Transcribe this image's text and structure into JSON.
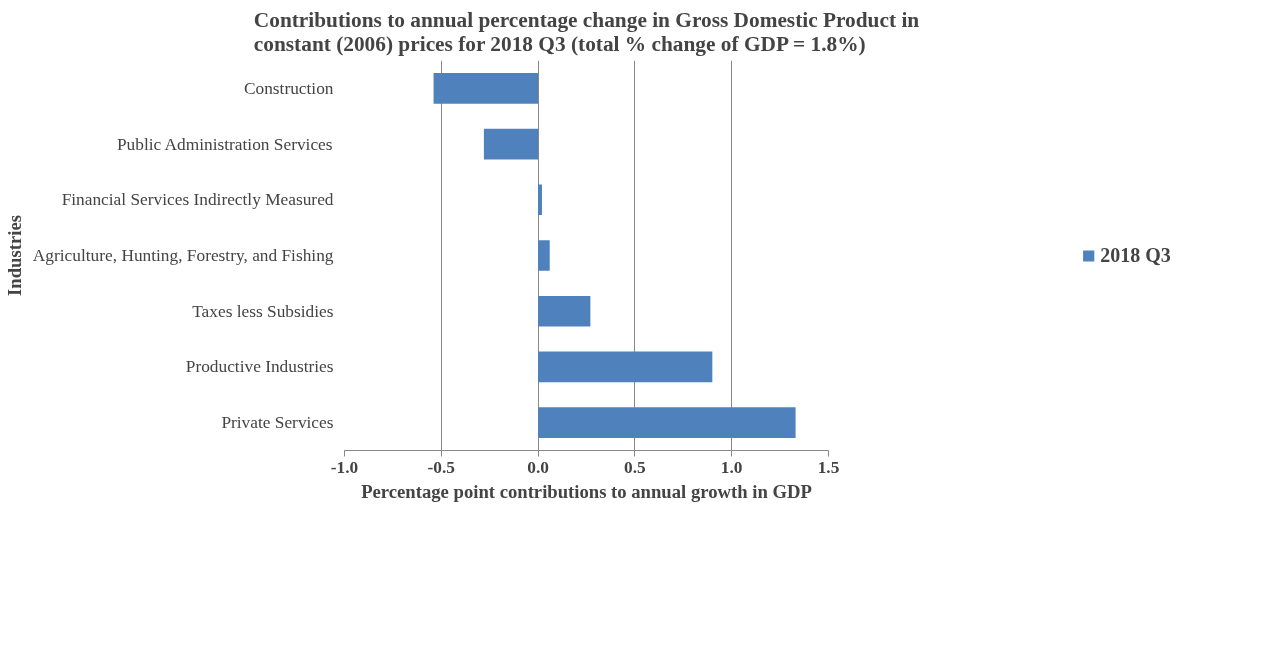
{
  "chart_data": {
    "type": "bar",
    "orientation": "horizontal",
    "title": "Contributions to annual percentage change in Gross Domestic Product in constant (2006) prices for 2018 Q3 (total % change of GDP = 1.8%)",
    "xlabel": "Percentage point contributions to annual growth in GDP",
    "ylabel": "Industries",
    "categories": [
      "Construction",
      "Public Administration Services",
      "Financial Services Indirectly Measured",
      "Agriculture, Hunting, Forestry, and Fishing",
      "Taxes less Subsidies",
      "Productive Industries",
      "Private Services"
    ],
    "series": [
      {
        "name": "2018 Q3",
        "color": "#4f81bd",
        "values": [
          -0.54,
          -0.28,
          0.02,
          0.06,
          0.27,
          0.9,
          1.33
        ]
      }
    ],
    "xlim": [
      -1.0,
      1.5
    ],
    "xticks": [
      {
        "value": -1.0,
        "label": "-1.0"
      },
      {
        "value": -0.5,
        "label": "-0.5"
      },
      {
        "value": 0,
        "label": "0.0"
      },
      {
        "value": 0.5,
        "label": "0.5"
      },
      {
        "value": 1.0,
        "label": "1.0"
      },
      {
        "value": 1.5,
        "label": "1.5"
      }
    ],
    "grid": "x",
    "legend": "right"
  }
}
